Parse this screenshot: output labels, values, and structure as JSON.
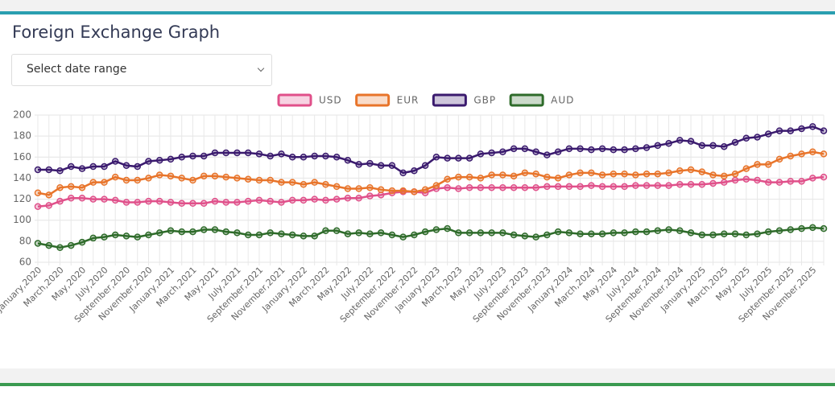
{
  "header": {
    "title": "Foreign Exchange Graph"
  },
  "filter": {
    "placeholder": "Select date range"
  },
  "chart_data": {
    "type": "line",
    "categories": [
      "January,2020",
      null,
      "March,2020",
      null,
      "May,2020",
      null,
      "July,2020",
      null,
      "September,2020",
      null,
      "November,2020",
      null,
      "January,2021",
      null,
      "March,2021",
      null,
      "May,2021",
      null,
      "July,2021",
      null,
      "September,2021",
      null,
      "November,2021",
      null,
      "January,2022",
      null,
      "March,2022",
      null,
      "May,2022",
      null,
      "July,2022",
      null,
      "September,2022",
      null,
      "November,2022",
      null,
      "January,2023",
      null,
      "March,2023",
      null,
      "May,2023",
      null,
      "July,2023",
      null,
      "September,2023",
      null,
      "November,2023",
      null,
      "January,2024",
      null,
      "March,2024",
      null,
      "May,2024",
      null,
      "July,2024",
      null,
      "September,2024",
      null,
      "November,2024",
      null,
      "January,2025",
      null,
      "March,2025",
      null,
      "May,2025",
      null,
      "July,2025",
      null,
      "September,2025",
      null,
      "November,2025",
      null
    ],
    "series": [
      {
        "name": "USD",
        "color": "#e0508a",
        "values": [
          113,
          114,
          118,
          121,
          121,
          120,
          120,
          119,
          117,
          117,
          118,
          118,
          117,
          116,
          116,
          116,
          118,
          117,
          117,
          118,
          119,
          118,
          117,
          119,
          119,
          120,
          119,
          120,
          121,
          121,
          123,
          124,
          126,
          127,
          127,
          126,
          130,
          131,
          130,
          131,
          131,
          131,
          131,
          131,
          131,
          131,
          132,
          132,
          132,
          132,
          133,
          132,
          132,
          132,
          133,
          133,
          133,
          133,
          134,
          134,
          134,
          135,
          136,
          138,
          139,
          138,
          136,
          136,
          137,
          137,
          140,
          141
        ]
      },
      {
        "name": "EUR",
        "color": "#e8742a",
        "values": [
          126,
          124,
          131,
          132,
          131,
          136,
          136,
          141,
          138,
          138,
          140,
          143,
          142,
          140,
          138,
          142,
          142,
          141,
          140,
          139,
          138,
          138,
          136,
          136,
          134,
          136,
          134,
          132,
          130,
          130,
          131,
          129,
          128,
          128,
          127,
          129,
          133,
          139,
          141,
          141,
          140,
          143,
          143,
          142,
          145,
          144,
          141,
          140,
          143,
          145,
          145,
          143,
          144,
          144,
          143,
          144,
          144,
          145,
          147,
          148,
          146,
          143,
          142,
          144,
          149,
          153,
          153,
          158,
          161,
          163,
          165,
          163
        ]
      },
      {
        "name": "GBP",
        "color": "#3a1a6e",
        "values": [
          148,
          148,
          147,
          151,
          149,
          151,
          151,
          156,
          152,
          151,
          156,
          157,
          158,
          160,
          161,
          161,
          164,
          164,
          164,
          164,
          163,
          161,
          163,
          160,
          160,
          161,
          161,
          160,
          157,
          153,
          154,
          152,
          152,
          145,
          147,
          152,
          160,
          159,
          159,
          159,
          163,
          164,
          165,
          168,
          168,
          165,
          162,
          165,
          168,
          168,
          167,
          168,
          167,
          167,
          168,
          169,
          171,
          173,
          176,
          175,
          171,
          171,
          170,
          174,
          178,
          179,
          182,
          185,
          185,
          187,
          189,
          185
        ]
      },
      {
        "name": "AUD",
        "color": "#2e6b2a",
        "values": [
          78,
          76,
          74,
          76,
          79,
          83,
          84,
          86,
          85,
          84,
          86,
          88,
          90,
          89,
          89,
          91,
          91,
          89,
          88,
          86,
          86,
          88,
          87,
          86,
          85,
          85,
          90,
          90,
          87,
          88,
          87,
          88,
          86,
          84,
          86,
          89,
          91,
          92,
          88,
          88,
          88,
          88,
          88,
          86,
          85,
          84,
          86,
          89,
          88,
          87,
          87,
          87,
          88,
          88,
          89,
          89,
          90,
          91,
          90,
          88,
          86,
          86,
          87,
          87,
          86,
          87,
          89,
          90,
          91,
          92,
          93,
          92
        ]
      }
    ],
    "ylim": [
      60,
      200
    ],
    "yticks": [
      60,
      80,
      100,
      120,
      140,
      160,
      180,
      200
    ],
    "grid": true,
    "legend": "top"
  }
}
